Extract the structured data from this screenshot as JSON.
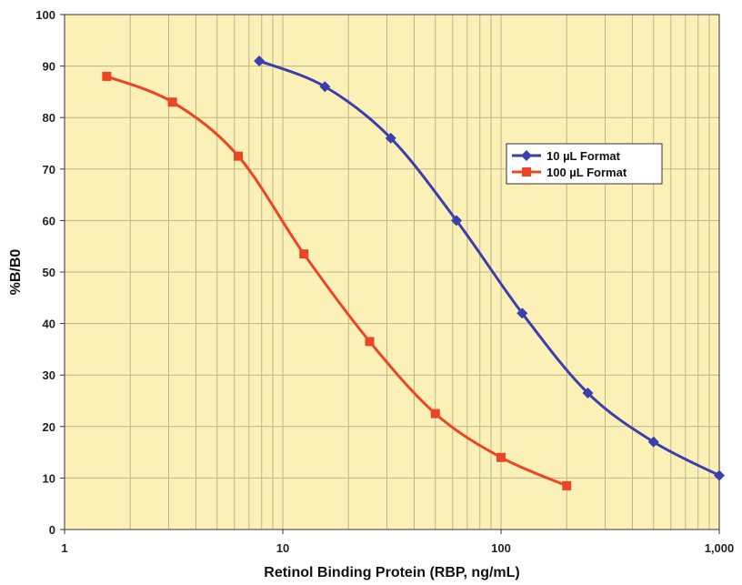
{
  "chart_data": {
    "type": "line",
    "xscale": "log",
    "xlim": [
      1,
      1000
    ],
    "ylim": [
      0,
      100
    ],
    "yticks": [
      0,
      10,
      20,
      30,
      40,
      50,
      60,
      70,
      80,
      90,
      100
    ],
    "xticks": [
      {
        "value": 1,
        "label": "1"
      },
      {
        "value": 10,
        "label": "10"
      },
      {
        "value": 100,
        "label": "100"
      },
      {
        "value": 1000,
        "label": "1,000"
      }
    ],
    "xlabel": "Retinol Binding Protein (RBP, ng/mL)",
    "ylabel": "%B/B0",
    "grid": true,
    "legend_position": "right",
    "plot_background": "#fbf1b6",
    "series": [
      {
        "name": "10 µL Format",
        "color": "#3a3fae",
        "marker": "diamond",
        "x": [
          7.8,
          15.6,
          31.25,
          62.5,
          125,
          250,
          500,
          1000
        ],
        "y": [
          91,
          86,
          76,
          60,
          42,
          26.5,
          17,
          10.5
        ]
      },
      {
        "name": "100 µL Format",
        "color": "#ee4426",
        "marker": "square",
        "x": [
          1.56,
          3.12,
          6.25,
          12.5,
          25,
          50,
          100,
          200
        ],
        "y": [
          88,
          83,
          72.5,
          53.5,
          36.5,
          22.5,
          14,
          8.5
        ]
      }
    ]
  }
}
